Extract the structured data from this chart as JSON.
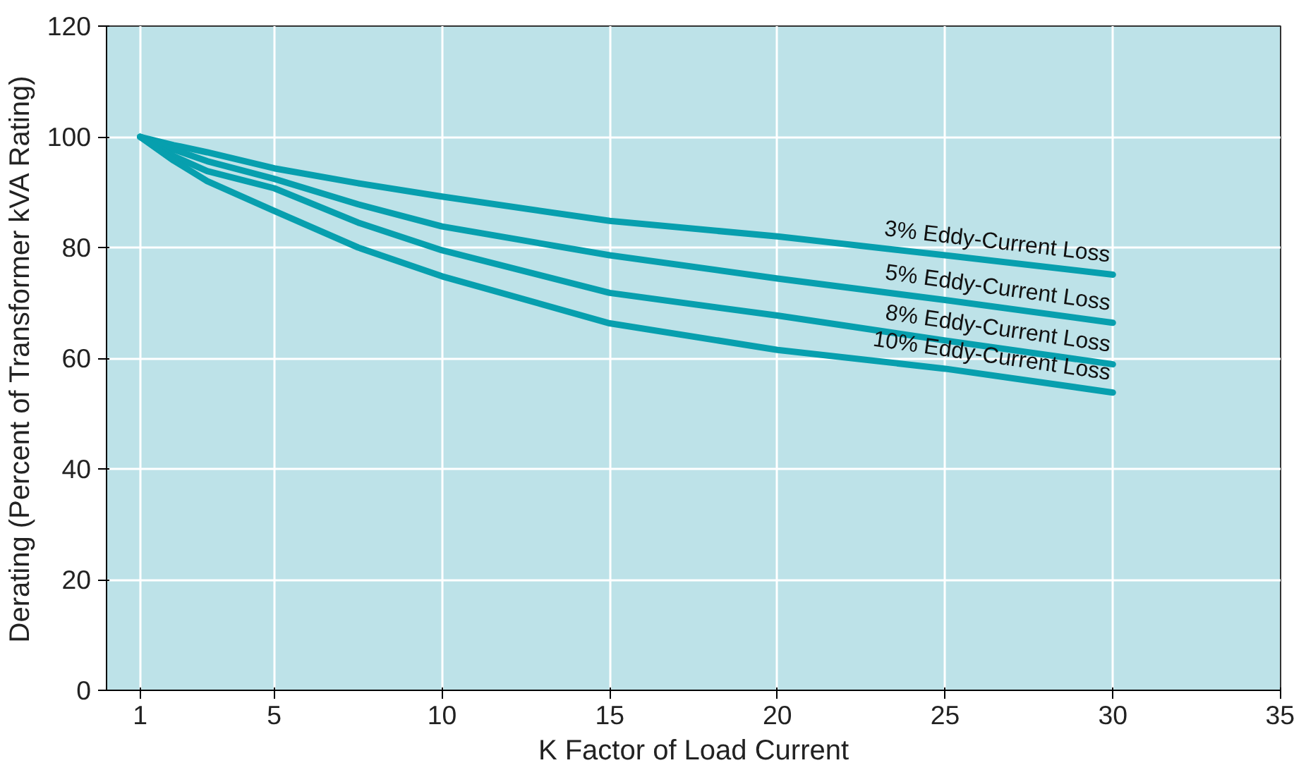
{
  "chart_data": {
    "type": "line",
    "xlabel": "K Factor of Load Current",
    "ylabel": "Derating (Percent of Transformer kVA Rating)",
    "x": [
      1,
      2,
      3,
      5,
      7.5,
      10,
      15,
      20,
      25,
      30
    ],
    "series": [
      {
        "name": "3% Eddy-Current Loss",
        "color": "#079fae",
        "values": [
          100,
          98.5,
          97.2,
          94.3,
          91.6,
          89.2,
          84.8,
          82.0,
          78.6,
          75.1
        ]
      },
      {
        "name": "5% Eddy-Current Loss",
        "color": "#079fae",
        "values": [
          100,
          97.7,
          95.6,
          92.4,
          87.8,
          83.8,
          78.6,
          74.4,
          70.5,
          66.4
        ]
      },
      {
        "name": "8% Eddy-Current Loss",
        "color": "#079fae",
        "values": [
          100,
          96.5,
          93.8,
          90.7,
          84.5,
          79.5,
          71.8,
          67.7,
          63.2,
          58.9
        ]
      },
      {
        "name": "10% Eddy-Current Loss",
        "color": "#079fae",
        "values": [
          100,
          95.7,
          92.0,
          86.6,
          80.0,
          74.8,
          66.3,
          61.5,
          58.1,
          53.8
        ]
      }
    ],
    "xlim": [
      0,
      35
    ],
    "ylim": [
      0,
      120
    ],
    "xticks": [
      1,
      5,
      10,
      15,
      20,
      25,
      30,
      35
    ],
    "yticks": [
      0,
      20,
      40,
      60,
      80,
      100,
      120
    ],
    "grid": true,
    "marker": "none",
    "line_style": "solid"
  }
}
